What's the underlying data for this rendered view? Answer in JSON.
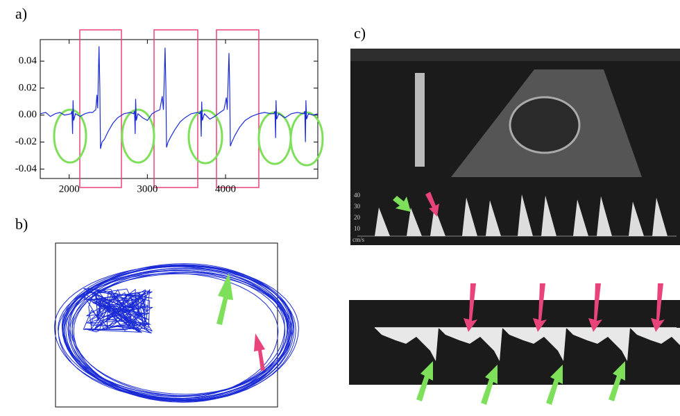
{
  "labels": {
    "a": "a)",
    "b": "b)",
    "c": "c)"
  },
  "chart_data": {
    "type": "line",
    "x": [
      1630,
      1700,
      1760,
      1820,
      1880,
      1940,
      2024,
      2036,
      2044,
      2050,
      2058,
      2080,
      2140,
      2200,
      2260,
      2300,
      2340,
      2355,
      2365,
      2382,
      2392,
      2400,
      2420,
      2450,
      2500,
      2560,
      2620,
      2700,
      2780,
      2824,
      2836,
      2844,
      2850,
      2858,
      2880,
      2940,
      3000,
      3060,
      3120,
      3160,
      3190,
      3205,
      3227,
      3237,
      3245,
      3265,
      3300,
      3350,
      3420,
      3480,
      3560,
      3640,
      3669,
      3681,
      3689,
      3695,
      3703,
      3730,
      3800,
      3860,
      3930,
      3980,
      4010,
      4022,
      4044,
      4054,
      4062,
      4080,
      4120,
      4180,
      4250,
      4330,
      4420,
      4500,
      4580,
      4620,
      4632,
      4640,
      4646,
      4654,
      4680,
      4760,
      4840,
      4920,
      5002,
      5014,
      5022,
      5028,
      5036,
      5060,
      5120,
      5180
    ],
    "series": [
      {
        "color": "#1a2bd6",
        "values": [
          0.001,
          0.002,
          -0.001,
          0.001,
          0.002,
          0.0,
          0.001,
          0.003,
          -0.014,
          0.011,
          -0.004,
          0.001,
          -0.001,
          0.001,
          0.002,
          0.002,
          0.004,
          0.015,
          0.005,
          0.051,
          0.02,
          -0.025,
          -0.02,
          -0.018,
          -0.012,
          -0.006,
          -0.002,
          0.001,
          0.002,
          0.001,
          0.003,
          -0.014,
          0.012,
          -0.004,
          0.001,
          -0.002,
          -0.004,
          0.001,
          0.003,
          0.004,
          0.014,
          0.004,
          0.05,
          0.02,
          -0.024,
          -0.02,
          -0.016,
          -0.011,
          -0.005,
          -0.002,
          0.001,
          0.002,
          0.001,
          0.003,
          -0.016,
          0.01,
          -0.004,
          0.001,
          -0.003,
          -0.001,
          0.002,
          0.004,
          0.013,
          0.004,
          0.046,
          0.018,
          -0.023,
          -0.02,
          -0.015,
          -0.009,
          -0.004,
          -0.001,
          0.001,
          0.002,
          0.001,
          0.001,
          0.003,
          -0.017,
          0.011,
          -0.003,
          0.001,
          -0.002,
          0.001,
          0.002,
          0.001,
          0.003,
          -0.02,
          0.011,
          -0.003,
          0.001,
          0.0,
          0.001
        ]
      }
    ],
    "xlim": [
      1630,
      5180
    ],
    "ylim": [
      -0.047,
      0.056
    ],
    "xticks": [
      2000,
      3000,
      4000
    ],
    "yticks": [
      0.04,
      0.02,
      {
        "value": 0,
        "label": "0.00"
      },
      -0.02,
      -0.04
    ]
  },
  "ultrasound": {
    "scale_labels": [
      "40",
      "30",
      "20",
      "10",
      "cm/s"
    ]
  }
}
